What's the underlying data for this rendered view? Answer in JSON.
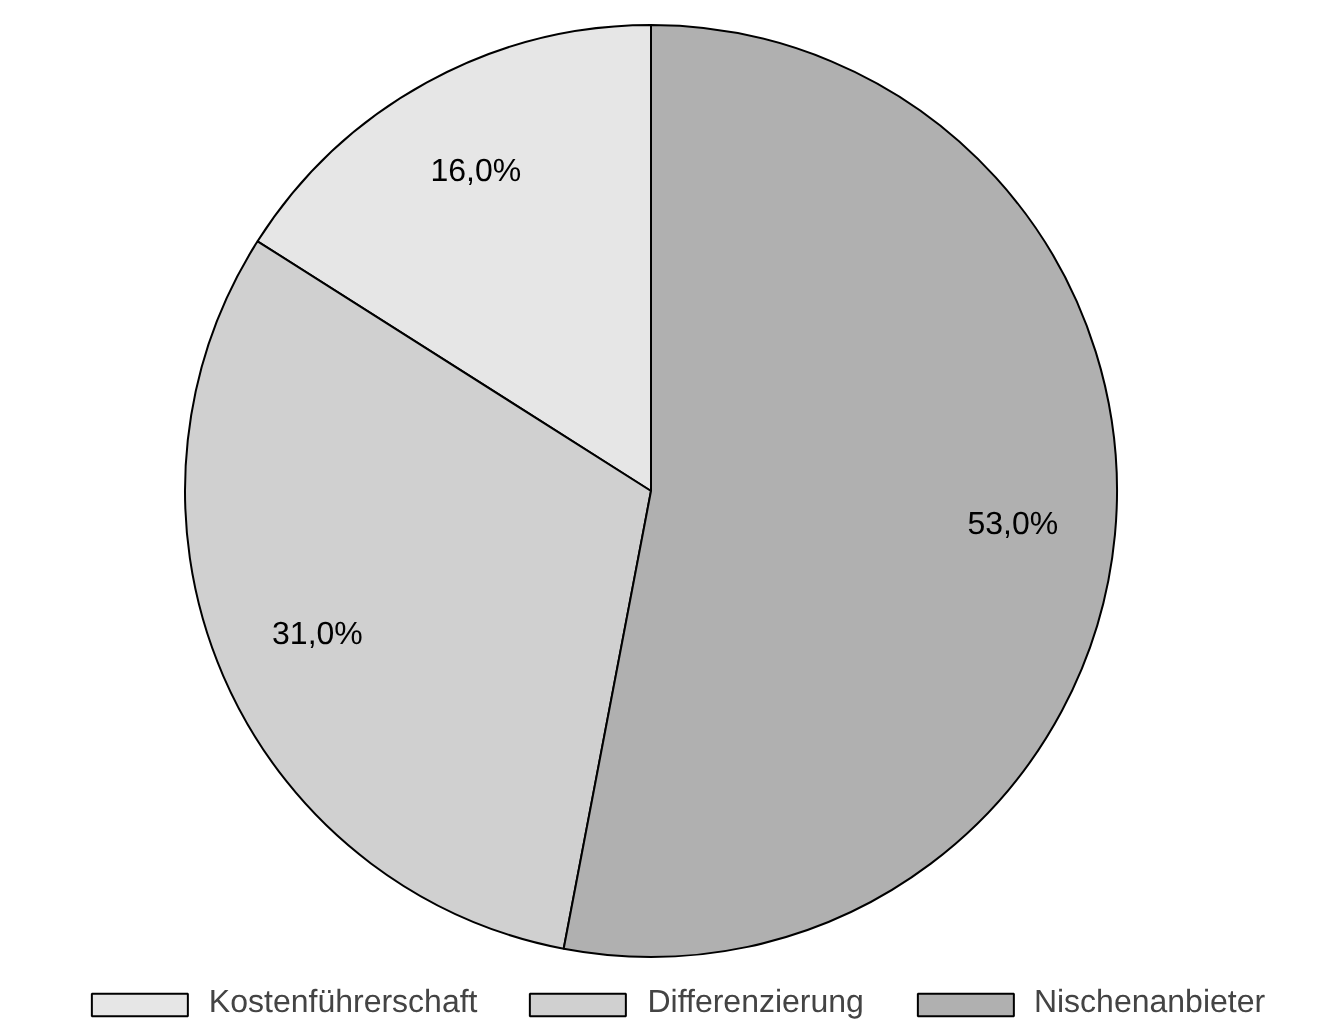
{
  "chart_data": {
    "type": "pie",
    "categories": [
      "Kostenführerschaft",
      "Differenzierung",
      "Nischenanbieter"
    ],
    "values": [
      16.0,
      31.0,
      53.0
    ],
    "colors": [
      "#e6e6e6",
      "#d0d0d0",
      "#b0b0b0"
    ],
    "value_labels": [
      "16,0%",
      "31,0%",
      "53,0%"
    ],
    "legend": "bottom"
  }
}
